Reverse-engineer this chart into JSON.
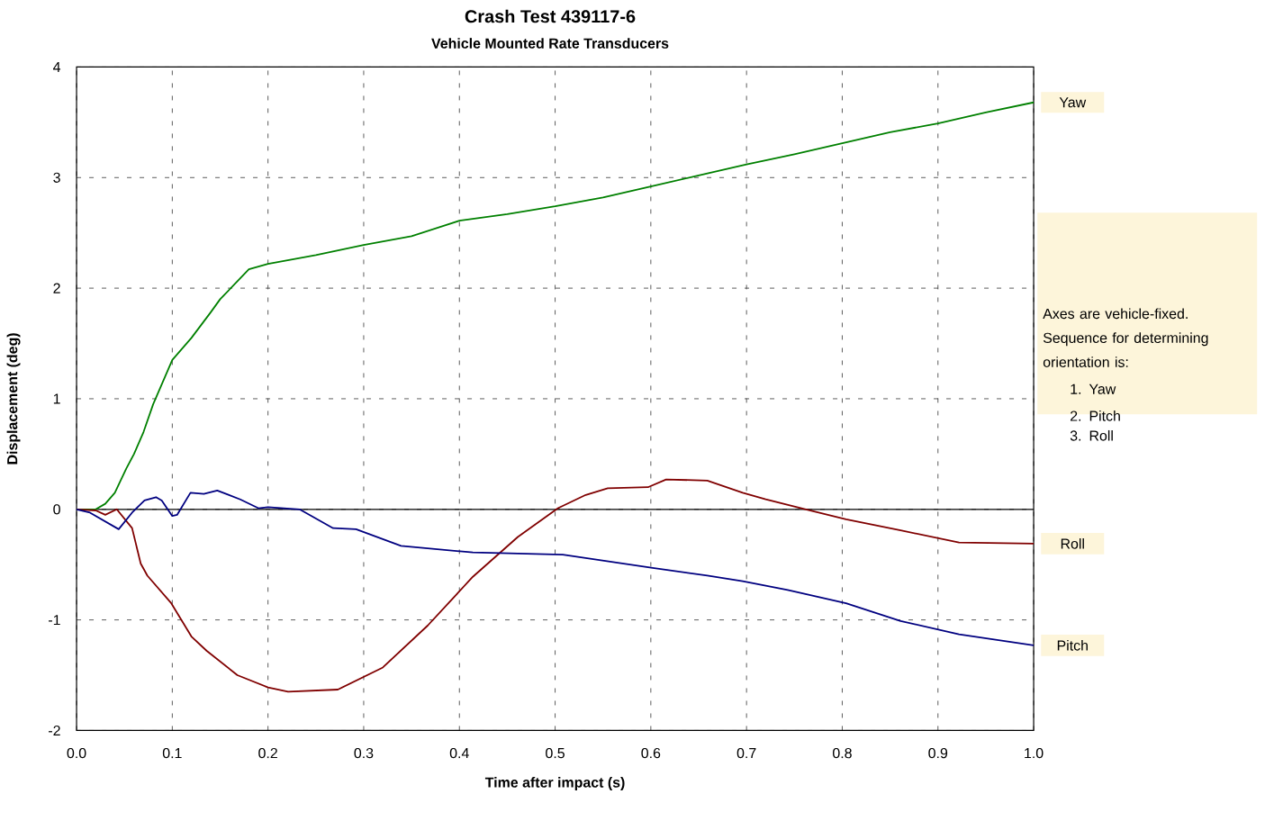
{
  "chart_data": {
    "type": "line",
    "title": "Crash Test 439117-6",
    "subtitle": "Vehicle Mounted Rate Transducers",
    "xlabel": "Time after impact (s)",
    "ylabel": "Displacement (deg)",
    "xlim": [
      0,
      1
    ],
    "ylim": [
      -2,
      4
    ],
    "xticks": [
      {
        "value": 0,
        "label": "0.0"
      },
      {
        "value": 0.1,
        "label": "0.1"
      },
      {
        "value": 0.2,
        "label": "0.2"
      },
      {
        "value": 0.3,
        "label": "0.3"
      },
      {
        "value": 0.4,
        "label": "0.4"
      },
      {
        "value": 0.5,
        "label": "0.5"
      },
      {
        "value": 0.6,
        "label": "0.6"
      },
      {
        "value": 0.7,
        "label": "0.7"
      },
      {
        "value": 0.8,
        "label": "0.8"
      },
      {
        "value": 0.9,
        "label": "0.9"
      },
      {
        "value": 1,
        "label": "1.0"
      }
    ],
    "yticks": [
      -2,
      -1,
      0,
      1,
      2,
      3,
      4
    ],
    "grid": true,
    "ref_lines": [
      {
        "axis": "y",
        "value": 0,
        "color": "#000000"
      }
    ],
    "annotations": [
      "Axes are vehicle-fixed. Sequence for determining orientation is:",
      "1.  Yaw",
      "2.  Pitch",
      "3.  Roll"
    ],
    "series": [
      {
        "name": "Yaw",
        "color": "#008000",
        "x": [
          0,
          0.02,
          0.03,
          0.04,
          0.052,
          0.06,
          0.07,
          0.08,
          0.09,
          0.1,
          0.12,
          0.14,
          0.15,
          0.18,
          0.2,
          0.25,
          0.3,
          0.35,
          0.4,
          0.45,
          0.5,
          0.55,
          0.6,
          0.65,
          0.7,
          0.75,
          0.8,
          0.85,
          0.9,
          0.95,
          1.0
        ],
        "values": [
          0,
          0,
          0.05,
          0.15,
          0.37,
          0.5,
          0.7,
          0.95,
          1.15,
          1.35,
          1.55,
          1.78,
          1.9,
          2.17,
          2.22,
          2.3,
          2.39,
          2.47,
          2.61,
          2.67,
          2.74,
          2.82,
          2.92,
          3.02,
          3.12,
          3.21,
          3.31,
          3.41,
          3.49,
          3.59,
          3.68
        ]
      },
      {
        "name": "Roll",
        "color": "#800000",
        "x": [
          0,
          0.02,
          0.03,
          0.042,
          0.058,
          0.067,
          0.074,
          0.099,
          0.12,
          0.136,
          0.168,
          0.2,
          0.221,
          0.273,
          0.32,
          0.367,
          0.414,
          0.461,
          0.503,
          0.532,
          0.555,
          0.597,
          0.616,
          0.659,
          0.696,
          0.72,
          0.762,
          0.804,
          0.861,
          0.922,
          1.0
        ],
        "values": [
          0,
          -0.01,
          -0.05,
          0,
          -0.17,
          -0.49,
          -0.6,
          -0.85,
          -1.15,
          -1.28,
          -1.5,
          -1.61,
          -1.65,
          -1.63,
          -1.43,
          -1.05,
          -0.61,
          -0.25,
          0.01,
          0.13,
          0.19,
          0.2,
          0.27,
          0.26,
          0.15,
          0.09,
          0,
          -0.09,
          -0.19,
          -0.3,
          -0.31
        ]
      },
      {
        "name": "Pitch",
        "color": "#000080",
        "x": [
          0,
          0.014,
          0.044,
          0.058,
          0.071,
          0.083,
          0.089,
          0.1,
          0.105,
          0.119,
          0.133,
          0.147,
          0.171,
          0.19,
          0.2,
          0.233,
          0.268,
          0.292,
          0.339,
          0.414,
          0.508,
          0.602,
          0.659,
          0.696,
          0.743,
          0.804,
          0.861,
          0.922,
          1.0
        ],
        "values": [
          0,
          -0.03,
          -0.18,
          -0.03,
          0.08,
          0.11,
          0.08,
          -0.06,
          -0.05,
          0.15,
          0.14,
          0.17,
          0.09,
          0.01,
          0.02,
          0,
          -0.17,
          -0.18,
          -0.33,
          -0.39,
          -0.41,
          -0.53,
          -0.6,
          -0.65,
          -0.73,
          -0.85,
          -1.01,
          -1.13,
          -1.23
        ]
      }
    ]
  }
}
